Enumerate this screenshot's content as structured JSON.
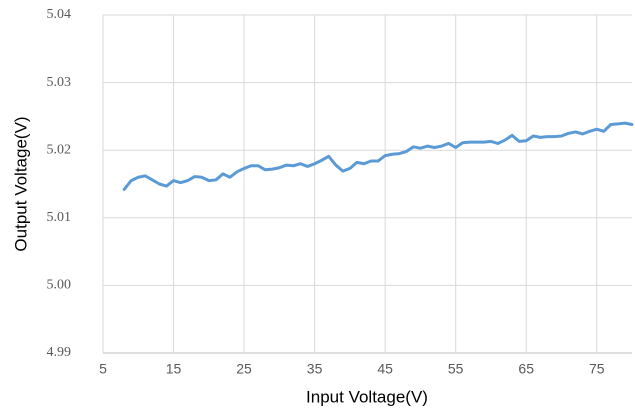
{
  "chart_data": {
    "type": "line",
    "x_label": "Input Voltage(V)",
    "y_label": "Output Voltage(V)",
    "x": [
      8,
      9,
      10,
      11,
      12,
      13,
      14,
      15,
      16,
      17,
      18,
      19,
      20,
      21,
      22,
      23,
      24,
      25,
      26,
      27,
      28,
      29,
      30,
      31,
      32,
      33,
      34,
      35,
      36,
      37,
      38,
      39,
      40,
      41,
      42,
      43,
      44,
      45,
      46,
      47,
      48,
      49,
      50,
      51,
      52,
      53,
      54,
      55,
      56,
      57,
      58,
      59,
      60,
      61,
      62,
      63,
      64,
      65,
      66,
      67,
      68,
      69,
      70,
      71,
      72,
      73,
      74,
      75,
      76,
      77,
      78,
      79,
      80
    ],
    "series": [
      {
        "color": "#5b9bd5",
        "values": [
          5.0142,
          5.0155,
          5.016,
          5.0162,
          5.0156,
          5.015,
          5.0147,
          5.0155,
          5.0152,
          5.0155,
          5.0161,
          5.016,
          5.0155,
          5.0156,
          5.0165,
          5.016,
          5.0168,
          5.0173,
          5.0177,
          5.0177,
          5.0171,
          5.0172,
          5.0174,
          5.0178,
          5.0177,
          5.018,
          5.0176,
          5.018,
          5.0185,
          5.0191,
          5.0178,
          5.0169,
          5.0173,
          5.0182,
          5.018,
          5.0184,
          5.0184,
          5.0192,
          5.0194,
          5.0195,
          5.0198,
          5.0205,
          5.0203,
          5.0206,
          5.0204,
          5.0206,
          5.021,
          5.0204,
          5.0211,
          5.0212,
          5.0212,
          5.0212,
          5.0213,
          5.021,
          5.0215,
          5.0222,
          5.0213,
          5.0214,
          5.0221,
          5.0219,
          5.022,
          5.022,
          5.0221,
          5.0225,
          5.0227,
          5.0224,
          5.0228,
          5.0231,
          5.0228,
          5.0238,
          5.0239,
          5.024,
          5.0238
        ]
      }
    ],
    "xlim": [
      5,
      80
    ],
    "xticks": [
      5,
      15,
      25,
      35,
      45,
      55,
      65,
      75
    ],
    "ylim": [
      4.99,
      5.04
    ],
    "yticks": [
      4.99,
      {
        "value": 5,
        "label": "5.00"
      },
      5.01,
      5.02,
      5.03,
      5.04
    ],
    "grid": true
  }
}
